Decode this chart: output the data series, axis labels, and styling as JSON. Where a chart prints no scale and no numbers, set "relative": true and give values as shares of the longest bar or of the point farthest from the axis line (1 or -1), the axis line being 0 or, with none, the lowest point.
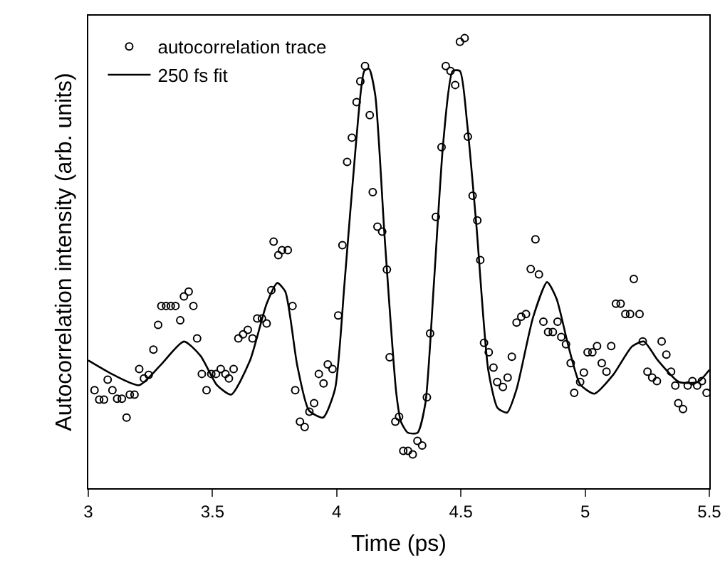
{
  "chart_data": {
    "type": "scatter",
    "relative": true,
    "xlabel": "Time (ps)",
    "ylabel": "Autocorrelation intensity (arb. units)",
    "xlim": [
      3,
      5.5
    ],
    "xticks": [
      3,
      3.5,
      4,
      4.5,
      5,
      5.5
    ],
    "legend": "top left",
    "grid": false,
    "series": [
      {
        "name": "autocorrelation trace",
        "marker": "circle",
        "color": "#000000",
        "x": [
          3.025,
          3.044,
          3.063,
          3.078,
          3.097,
          3.116,
          3.135,
          3.154,
          3.167,
          3.186,
          3.205,
          3.224,
          3.243,
          3.262,
          3.281,
          3.294,
          3.313,
          3.332,
          3.351,
          3.37,
          3.385,
          3.404,
          3.423,
          3.438,
          3.457,
          3.476,
          3.495,
          3.514,
          3.533,
          3.552,
          3.566,
          3.585,
          3.604,
          3.623,
          3.642,
          3.661,
          3.68,
          3.699,
          3.718,
          3.737,
          3.746,
          3.765,
          3.78,
          3.803,
          3.822,
          3.833,
          3.852,
          3.871,
          3.89,
          3.909,
          3.928,
          3.947,
          3.964,
          3.983,
          4.006,
          4.023,
          4.042,
          4.061,
          4.08,
          4.095,
          4.114,
          4.133,
          4.145,
          4.164,
          4.183,
          4.202,
          4.213,
          4.236,
          4.251,
          4.268,
          4.287,
          4.306,
          4.325,
          4.344,
          4.363,
          4.376,
          4.399,
          4.422,
          4.439,
          4.458,
          4.477,
          4.496,
          4.515,
          4.528,
          4.547,
          4.566,
          4.578,
          4.593,
          4.612,
          4.631,
          4.646,
          4.669,
          4.688,
          4.705,
          4.724,
          4.743,
          4.762,
          4.781,
          4.8,
          4.814,
          4.832,
          4.851,
          4.87,
          4.889,
          4.904,
          4.923,
          4.942,
          4.956,
          4.98,
          4.995,
          5.01,
          5.029,
          5.048,
          5.067,
          5.086,
          5.105,
          5.124,
          5.143,
          5.162,
          5.181,
          5.196,
          5.219,
          5.232,
          5.251,
          5.27,
          5.289,
          5.308,
          5.327,
          5.346,
          5.363,
          5.375,
          5.394,
          5.413,
          5.432,
          5.451,
          5.47,
          5.489
        ],
        "values": [
          0.218,
          0.197,
          0.197,
          0.241,
          0.218,
          0.199,
          0.199,
          0.157,
          0.208,
          0.208,
          0.265,
          0.244,
          0.252,
          0.308,
          0.363,
          0.405,
          0.405,
          0.405,
          0.405,
          0.373,
          0.426,
          0.437,
          0.405,
          0.333,
          0.254,
          0.218,
          0.254,
          0.254,
          0.265,
          0.254,
          0.244,
          0.265,
          0.333,
          0.342,
          0.352,
          0.333,
          0.377,
          0.377,
          0.366,
          0.44,
          0.548,
          0.518,
          0.529,
          0.529,
          0.405,
          0.218,
          0.148,
          0.136,
          0.17,
          0.189,
          0.254,
          0.233,
          0.275,
          0.265,
          0.384,
          0.54,
          0.725,
          0.779,
          0.858,
          0.904,
          0.938,
          0.829,
          0.658,
          0.581,
          0.57,
          0.486,
          0.291,
          0.148,
          0.159,
          0.083,
          0.083,
          0.075,
          0.105,
          0.095,
          0.202,
          0.344,
          0.603,
          0.758,
          0.938,
          0.927,
          0.896,
          0.992,
          1.0,
          0.781,
          0.65,
          0.595,
          0.507,
          0.323,
          0.302,
          0.268,
          0.236,
          0.225,
          0.246,
          0.292,
          0.368,
          0.381,
          0.387,
          0.487,
          0.553,
          0.475,
          0.37,
          0.347,
          0.347,
          0.37,
          0.336,
          0.32,
          0.278,
          0.212,
          0.236,
          0.257,
          0.302,
          0.302,
          0.316,
          0.278,
          0.259,
          0.316,
          0.41,
          0.41,
          0.387,
          0.387,
          0.465,
          0.387,
          0.326,
          0.259,
          0.246,
          0.238,
          0.326,
          0.297,
          0.259,
          0.228,
          0.189,
          0.176,
          0.228,
          0.238,
          0.228,
          0.238,
          0.212
        ]
      },
      {
        "name": "250 fs fit",
        "type": "line",
        "marker": "none",
        "line_style": "solid",
        "color": "#000000",
        "x": [
          3.0,
          3.101,
          3.205,
          3.29,
          3.385,
          3.452,
          3.518,
          3.575,
          3.651,
          3.718,
          3.761,
          3.793,
          3.841,
          3.888,
          3.945,
          3.993,
          4.031,
          4.078,
          4.111,
          4.13,
          4.155,
          4.193,
          4.24,
          4.259,
          4.287,
          4.325,
          4.357,
          4.391,
          4.429,
          4.467,
          4.496,
          4.525,
          4.563,
          4.61,
          4.648,
          4.686,
          4.724,
          4.79,
          4.847,
          4.885,
          4.933,
          4.98,
          5.037,
          5.113,
          5.189,
          5.236,
          5.293,
          5.378,
          5.454,
          5.5
        ],
        "values": [
          0.284,
          0.252,
          0.229,
          0.273,
          0.326,
          0.294,
          0.229,
          0.208,
          0.284,
          0.41,
          0.456,
          0.437,
          0.273,
          0.173,
          0.157,
          0.22,
          0.453,
          0.769,
          0.927,
          0.932,
          0.874,
          0.557,
          0.21,
          0.147,
          0.123,
          0.123,
          0.189,
          0.453,
          0.769,
          0.927,
          0.927,
          0.811,
          0.579,
          0.263,
          0.178,
          0.168,
          0.22,
          0.379,
          0.458,
          0.421,
          0.315,
          0.231,
          0.21,
          0.252,
          0.315,
          0.326,
          0.284,
          0.236,
          0.236,
          0.263
        ]
      }
    ]
  }
}
